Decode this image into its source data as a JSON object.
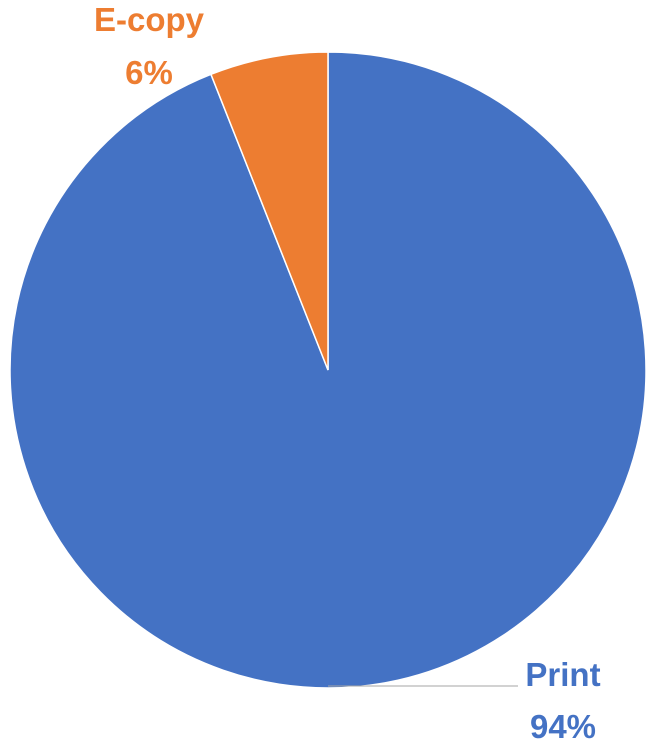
{
  "chart_data": {
    "type": "pie",
    "title": "",
    "categories": [
      "Print",
      "E-copy"
    ],
    "values": [
      94,
      6
    ],
    "data_labels": [
      {
        "category": "Print",
        "percent": "94%"
      },
      {
        "category": "E-copy",
        "percent": "6%"
      }
    ],
    "colors": {
      "Print": "#4472C4",
      "E-copy": "#ED7D31"
    },
    "legend": "none"
  }
}
